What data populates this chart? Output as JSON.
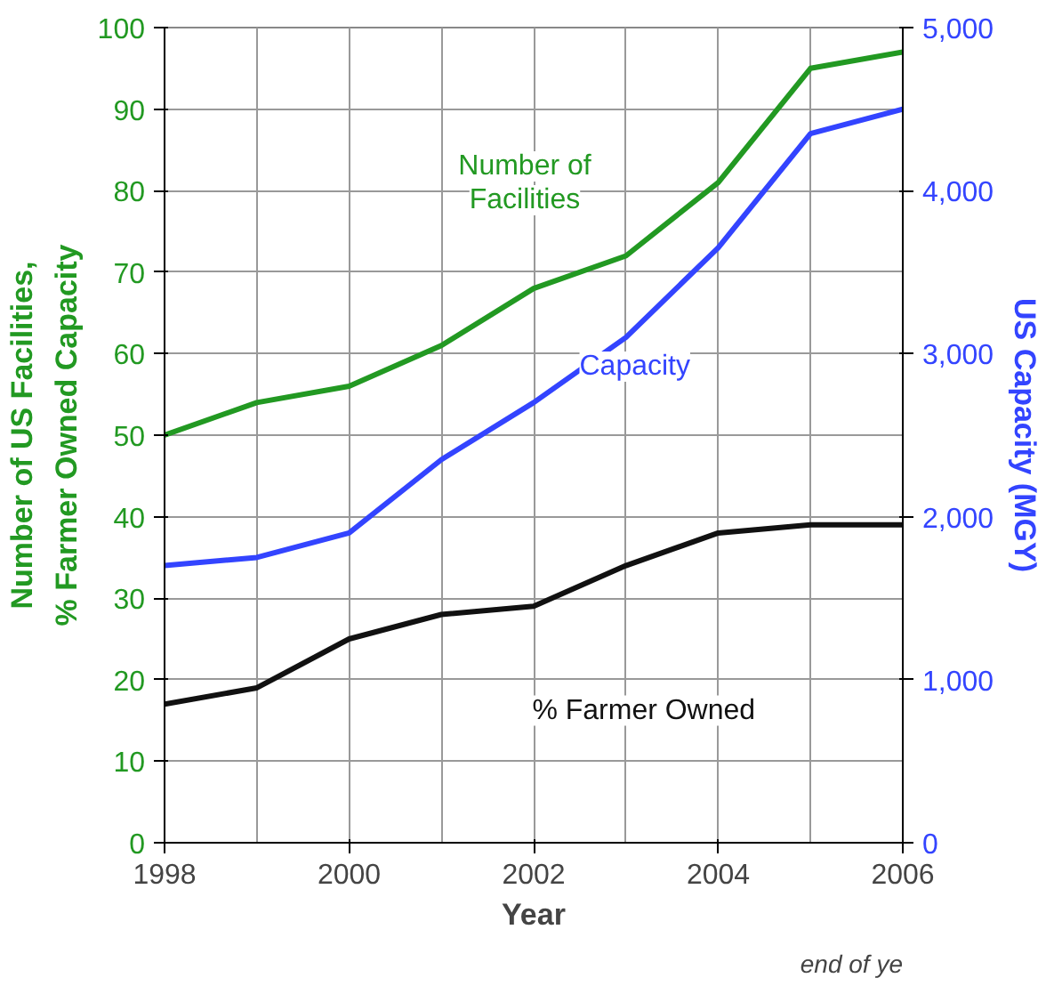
{
  "chart_data": {
    "type": "line",
    "xlabel": "Year",
    "ylabel": "Number of US Facilities,\n% Farmer Owned Capacity",
    "y2label": "US Capacity (MGY)",
    "x": [
      1998,
      1999,
      2000,
      2001,
      2002,
      2003,
      2004,
      2005,
      2006
    ],
    "xlim": [
      1998,
      2006
    ],
    "xticks": [
      1998,
      2000,
      2002,
      2004,
      2006
    ],
    "ylim": [
      0,
      100
    ],
    "yticks": [
      0,
      10,
      20,
      30,
      40,
      50,
      60,
      70,
      80,
      90,
      100
    ],
    "y2lim": [
      0,
      5000
    ],
    "y2ticks": [
      {
        "value": 0,
        "label": "0"
      },
      {
        "value": 1000,
        "label": "1,000"
      },
      {
        "value": 2000,
        "label": "2,000"
      },
      {
        "value": 3000,
        "label": "3,000"
      },
      {
        "value": 4000,
        "label": "4,000"
      },
      {
        "value": 5000,
        "label": "5,000"
      }
    ],
    "series": [
      {
        "name": "Number of Facilities",
        "color": "#229922",
        "values": [
          50,
          54,
          56,
          61,
          68,
          72,
          81,
          95,
          97
        ]
      },
      {
        "name": "Capacity",
        "color": "#3344ff",
        "axis": "y2",
        "values": [
          1700,
          1750,
          1900,
          2350,
          2700,
          3100,
          3650,
          4350,
          4500
        ]
      },
      {
        "name": "% Farmer Owned",
        "color": "#111111",
        "values": [
          17,
          19,
          25,
          28,
          29,
          34,
          38,
          39,
          39
        ]
      }
    ],
    "annotations": [
      "end of ye"
    ],
    "grid": true,
    "legend": false,
    "marker": "none",
    "line_style": "solid"
  }
}
